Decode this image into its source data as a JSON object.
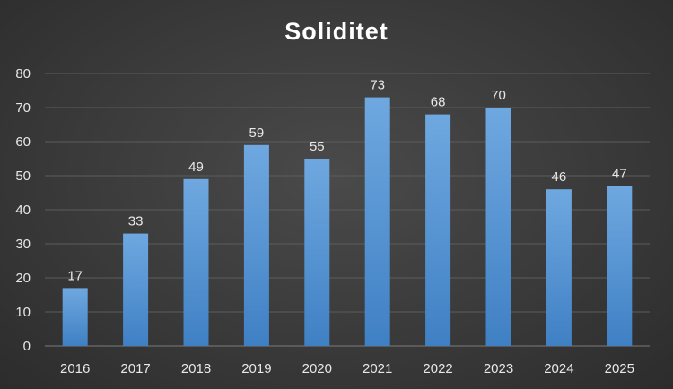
{
  "chart_data": {
    "type": "bar",
    "title": "Soliditet",
    "categories": [
      "2016",
      "2017",
      "2018",
      "2019",
      "2020",
      "2021",
      "2022",
      "2023",
      "2024",
      "2025"
    ],
    "values": [
      17,
      33,
      49,
      59,
      55,
      73,
      68,
      70,
      46,
      47
    ],
    "xlabel": "",
    "ylabel": "",
    "ylim": [
      0,
      80
    ],
    "yticks": [
      "0",
      "10",
      "20",
      "30",
      "40",
      "50",
      "60",
      "70",
      "80"
    ],
    "data_labels": [
      "17",
      "33",
      "49",
      "59",
      "55",
      "73",
      "68",
      "70",
      "46",
      "47"
    ],
    "grid": true,
    "legend": "none",
    "colors": {
      "bar_top": "#6fa8e0",
      "bar_bottom": "#3f80c4",
      "grid": "#5c5c5c",
      "text": "#e8e8e8",
      "title": "#ffffff"
    }
  }
}
